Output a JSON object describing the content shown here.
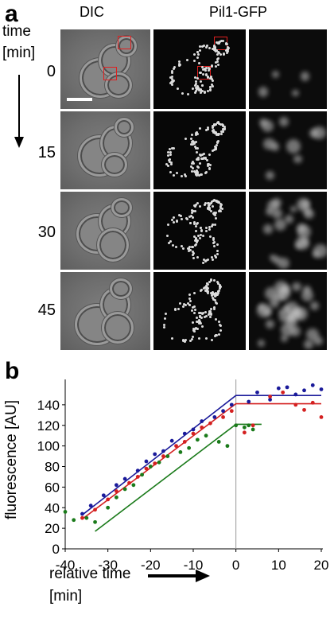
{
  "panel_a": {
    "letter": "a",
    "col_headers": [
      "DIC",
      "Pil1-GFP"
    ],
    "time_label_line1": "time",
    "time_label_line2": "[min]",
    "timepoints": [
      "0",
      "15",
      "30",
      "45"
    ]
  },
  "panel_b": {
    "letter": "b",
    "xlabel_line1": "relative time",
    "xlabel_line2": "[min]",
    "ylabel": "fluorescence [AU]"
  },
  "chart_data": {
    "type": "scatter",
    "xlabel": "relative time [min]",
    "ylabel": "fluorescence [AU]",
    "xlim": [
      -40,
      20
    ],
    "ylim": [
      0,
      160
    ],
    "xticks": [
      -40,
      -30,
      -20,
      -10,
      0,
      10,
      20
    ],
    "yticks": [
      0,
      20,
      40,
      60,
      80,
      100,
      120,
      140
    ],
    "grid": false,
    "series": [
      {
        "color": "#1a1a9a",
        "points": [
          [
            -36,
            34
          ],
          [
            -34,
            42
          ],
          [
            -31,
            52
          ],
          [
            -28,
            62
          ],
          [
            -26,
            68
          ],
          [
            -23,
            76
          ],
          [
            -21,
            85
          ],
          [
            -19,
            92
          ],
          [
            -17,
            95
          ],
          [
            -15,
            105
          ],
          [
            -12,
            112
          ],
          [
            -10,
            116
          ],
          [
            -8,
            124
          ],
          [
            -5,
            128
          ],
          [
            -3,
            134
          ],
          [
            -1,
            140
          ],
          [
            3,
            143
          ],
          [
            5,
            152
          ],
          [
            8,
            145
          ],
          [
            10,
            156
          ],
          [
            12,
            157
          ],
          [
            14,
            150
          ],
          [
            16,
            154
          ],
          [
            18,
            159
          ],
          [
            20,
            155
          ]
        ],
        "fit": [
          [
            -36,
            33
          ],
          [
            0,
            149
          ],
          [
            20,
            149
          ]
        ]
      },
      {
        "color": "#d42020",
        "points": [
          [
            -36,
            30
          ],
          [
            -33,
            38
          ],
          [
            -30,
            48
          ],
          [
            -28,
            56
          ],
          [
            -25,
            64
          ],
          [
            -23,
            70
          ],
          [
            -21,
            78
          ],
          [
            -19,
            83
          ],
          [
            -17,
            90
          ],
          [
            -14,
            100
          ],
          [
            -12,
            104
          ],
          [
            -10,
            112
          ],
          [
            -8,
            118
          ],
          [
            -6,
            122
          ],
          [
            -3,
            128
          ],
          [
            -1,
            134
          ],
          [
            2,
            113
          ],
          [
            4,
            120
          ],
          [
            8,
            148
          ],
          [
            11,
            152
          ],
          [
            14,
            140
          ],
          [
            16,
            135
          ],
          [
            18,
            142
          ],
          [
            20,
            128
          ]
        ],
        "fit": [
          [
            -36,
            29
          ],
          [
            0,
            141
          ],
          [
            20,
            141
          ]
        ]
      },
      {
        "color": "#1a7a1a",
        "points": [
          [
            -40,
            36
          ],
          [
            -38,
            28
          ],
          [
            -35,
            30
          ],
          [
            -33,
            26
          ],
          [
            -30,
            40
          ],
          [
            -28,
            50
          ],
          [
            -26,
            58
          ],
          [
            -24,
            62
          ],
          [
            -22,
            72
          ],
          [
            -20,
            80
          ],
          [
            -18,
            84
          ],
          [
            -16,
            90
          ],
          [
            -13,
            94
          ],
          [
            -11,
            98
          ],
          [
            -9,
            106
          ],
          [
            -7,
            110
          ],
          [
            -4,
            104
          ],
          [
            -2,
            100
          ],
          [
            0,
            120
          ],
          [
            2,
            118
          ],
          [
            3,
            120
          ],
          [
            4,
            116
          ]
        ],
        "fit": [
          [
            -33,
            17
          ],
          [
            0,
            121
          ],
          [
            6,
            121
          ]
        ]
      }
    ]
  }
}
